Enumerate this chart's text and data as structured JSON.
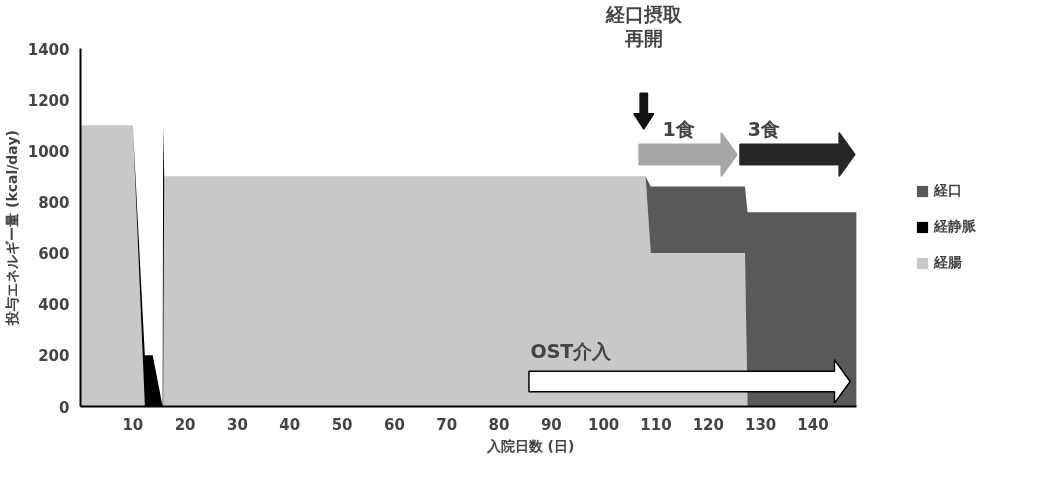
{
  "chart_data": {
    "type": "area",
    "stacked": true,
    "xlabel": "入院日数 (日)",
    "ylabel": "投与エネルギー量 (kcal/day)",
    "x": [
      0,
      10,
      12.3,
      13.8,
      15.7,
      15.8,
      16,
      108,
      109,
      127,
      127.5,
      148.3
    ],
    "series": [
      {
        "name": "経腸",
        "color": "#c8c8c8",
        "values": [
          1100,
          1100,
          0,
          0,
          0,
          0,
          900,
          900,
          600,
          600,
          0,
          0
        ]
      },
      {
        "name": "経静脈",
        "color": "#000000",
        "values": [
          null,
          0,
          200,
          200,
          0,
          1100,
          0,
          null,
          null,
          null,
          null,
          null
        ]
      },
      {
        "name": "経口",
        "color": "#595959",
        "values": [
          null,
          null,
          null,
          null,
          null,
          null,
          null,
          0,
          260,
          260,
          760,
          760
        ]
      }
    ],
    "xlim": [
      0,
      148.3
    ],
    "ylim": [
      0,
      1400
    ],
    "xticks": [
      10,
      20,
      30,
      40,
      50,
      60,
      70,
      80,
      90,
      100,
      110,
      120,
      130,
      140
    ],
    "yticks": [
      0,
      200,
      400,
      600,
      800,
      1000,
      1200,
      1400
    ],
    "annotations": [
      "経口摂取",
      "再開",
      "1食",
      "3食",
      "OST介入"
    ],
    "grid": false,
    "legend": "right"
  }
}
